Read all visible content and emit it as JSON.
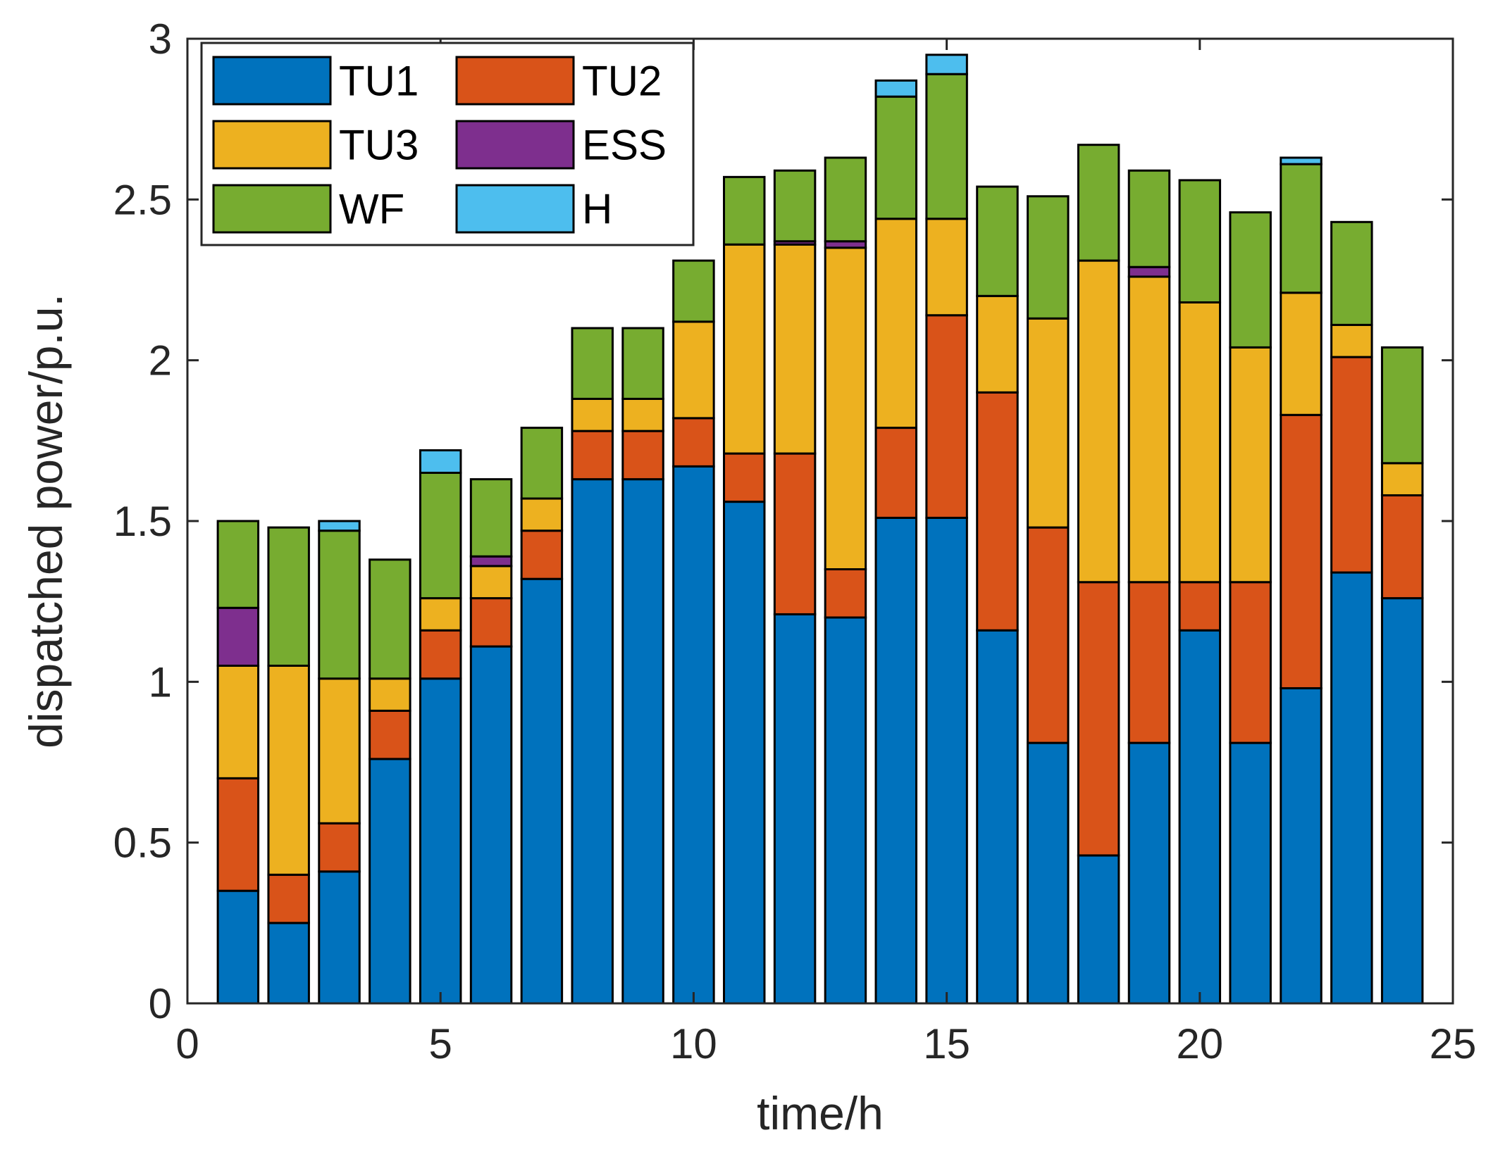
{
  "chart_data": {
    "type": "bar",
    "stacked": true,
    "title": "",
    "xlabel": "time/h",
    "ylabel": "dispatched power/p.u.",
    "xlim": [
      0,
      25
    ],
    "ylim": [
      0,
      3
    ],
    "xticks": [
      "0",
      "5",
      "10",
      "15",
      "20",
      "25"
    ],
    "yticks": [
      "0",
      "0.5",
      "1",
      "1.5",
      "2",
      "2.5",
      "3"
    ],
    "grid": false,
    "legend_position": "top-left",
    "x": [
      1,
      2,
      3,
      4,
      5,
      6,
      7,
      8,
      9,
      10,
      11,
      12,
      13,
      14,
      15,
      16,
      17,
      18,
      19,
      20,
      21,
      22,
      23,
      24
    ],
    "series": [
      {
        "name": "TU1",
        "color": "#0072BD",
        "values": [
          0.35,
          0.25,
          0.41,
          0.76,
          1.01,
          1.11,
          1.32,
          1.63,
          1.63,
          1.67,
          1.56,
          1.21,
          1.2,
          1.51,
          1.51,
          1.16,
          0.81,
          0.46,
          0.81,
          1.16,
          0.81,
          0.98,
          1.34,
          1.26
        ]
      },
      {
        "name": "TU2",
        "color": "#D95319",
        "values": [
          0.35,
          0.15,
          0.15,
          0.15,
          0.15,
          0.15,
          0.15,
          0.15,
          0.15,
          0.15,
          0.15,
          0.5,
          0.15,
          0.28,
          0.63,
          0.74,
          0.67,
          0.85,
          0.5,
          0.15,
          0.5,
          0.85,
          0.67,
          0.32
        ]
      },
      {
        "name": "TU3",
        "color": "#EDB120",
        "values": [
          0.35,
          0.65,
          0.45,
          0.1,
          0.1,
          0.1,
          0.1,
          0.1,
          0.1,
          0.3,
          0.65,
          0.65,
          1.0,
          0.65,
          0.3,
          0.3,
          0.65,
          1.0,
          0.95,
          0.87,
          0.73,
          0.38,
          0.1,
          0.1
        ]
      },
      {
        "name": "ESS",
        "color": "#7E2F8E",
        "values": [
          0.18,
          0,
          0,
          0,
          0,
          0.03,
          0,
          0,
          0,
          0,
          0,
          0.01,
          0.02,
          0,
          0,
          0,
          0,
          0,
          0.03,
          0,
          0,
          0,
          0,
          0
        ]
      },
      {
        "name": "WF",
        "color": "#77AC30",
        "values": [
          0.27,
          0.43,
          0.46,
          0.37,
          0.39,
          0.24,
          0.22,
          0.22,
          0.22,
          0.19,
          0.21,
          0.22,
          0.26,
          0.38,
          0.45,
          0.34,
          0.38,
          0.36,
          0.3,
          0.38,
          0.42,
          0.4,
          0.32,
          0.36
        ]
      },
      {
        "name": "H",
        "color": "#4DBEEE",
        "values": [
          0,
          0,
          0.03,
          0,
          0.07,
          0,
          0,
          0,
          0,
          0,
          0,
          0,
          0,
          0.05,
          0.06,
          0,
          0,
          0,
          0,
          0,
          0,
          0.02,
          0,
          0
        ]
      }
    ]
  }
}
